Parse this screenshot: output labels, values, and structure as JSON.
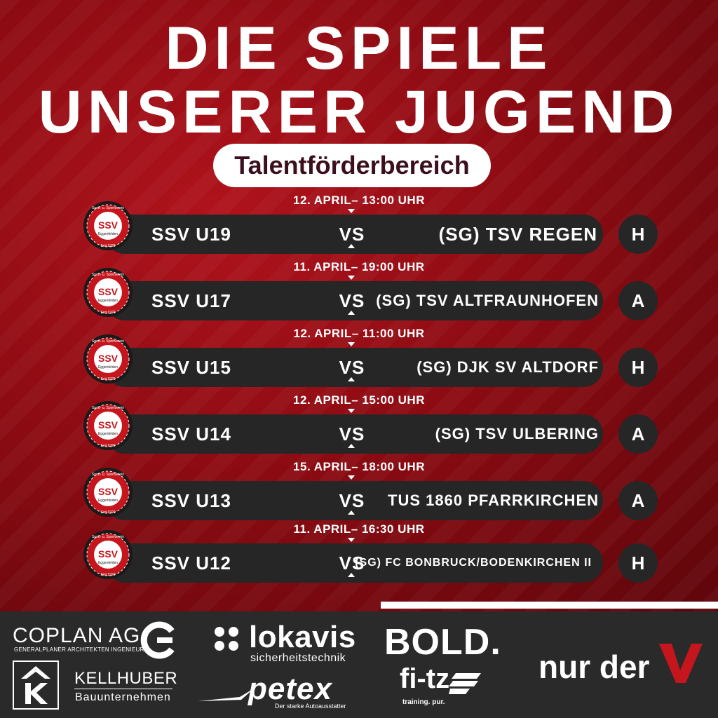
{
  "title": {
    "line1": "DIE SPIELE",
    "line2": "UNSERER JUGEND",
    "badge": "Talentförderbereich"
  },
  "club_logo": {
    "top_text": "Sport- u. Sportverein",
    "name": "SSV",
    "town": "Eggenfelden",
    "since": "Seit 1920"
  },
  "vs_label": "VS",
  "matches": [
    {
      "date": "12. APRIL– 13:00 UHR",
      "home": "SSV U19",
      "away": "(SG) TSV REGEN",
      "venue": "H"
    },
    {
      "date": "11. APRIL– 19:00 UHR",
      "home": "SSV U17",
      "away": "(SG) TSV ALTFRAUNHOFEN",
      "venue": "A"
    },
    {
      "date": "12. APRIL– 11:00 UHR",
      "home": "SSV U15",
      "away": "(SG) DJK SV ALTDORF",
      "venue": "H"
    },
    {
      "date": "12. APRIL– 15:00 UHR",
      "home": "SSV U14",
      "away": "(SG) TSV ULBERING",
      "venue": "A"
    },
    {
      "date": "15. APRIL– 18:00 UHR",
      "home": "SSV U13",
      "away": "TUS 1860 PFARRKIRCHEN",
      "venue": "A"
    },
    {
      "date": "11. APRIL– 16:30 UHR",
      "home": "SSV U12",
      "away": "(SG) FC BONBRUCK/BODENKIRCHEN II",
      "venue": "H"
    }
  ],
  "sponsors": {
    "coplan": {
      "name": "COPLAN AG",
      "sub": "GENERALPLANER ARCHITEKTEN INGENIEURE"
    },
    "kellhuber": {
      "name": "KELLHUBER",
      "sub": "Bauunternehmen"
    },
    "lokavis": {
      "name": "lokavis",
      "sub": "sicherheitstechnik"
    },
    "petex": {
      "name": "petex",
      "sub": "Der starke Autoausstatter"
    },
    "bold": {
      "name": "BOLD."
    },
    "fitz": {
      "name": "fi-tz",
      "sub": "training. pur."
    },
    "nurder": {
      "name": "nur der"
    }
  },
  "colors": {
    "accent_red": "#b0131c",
    "bar_dark": "#262626",
    "footer_bg": "#2a2a2a"
  }
}
